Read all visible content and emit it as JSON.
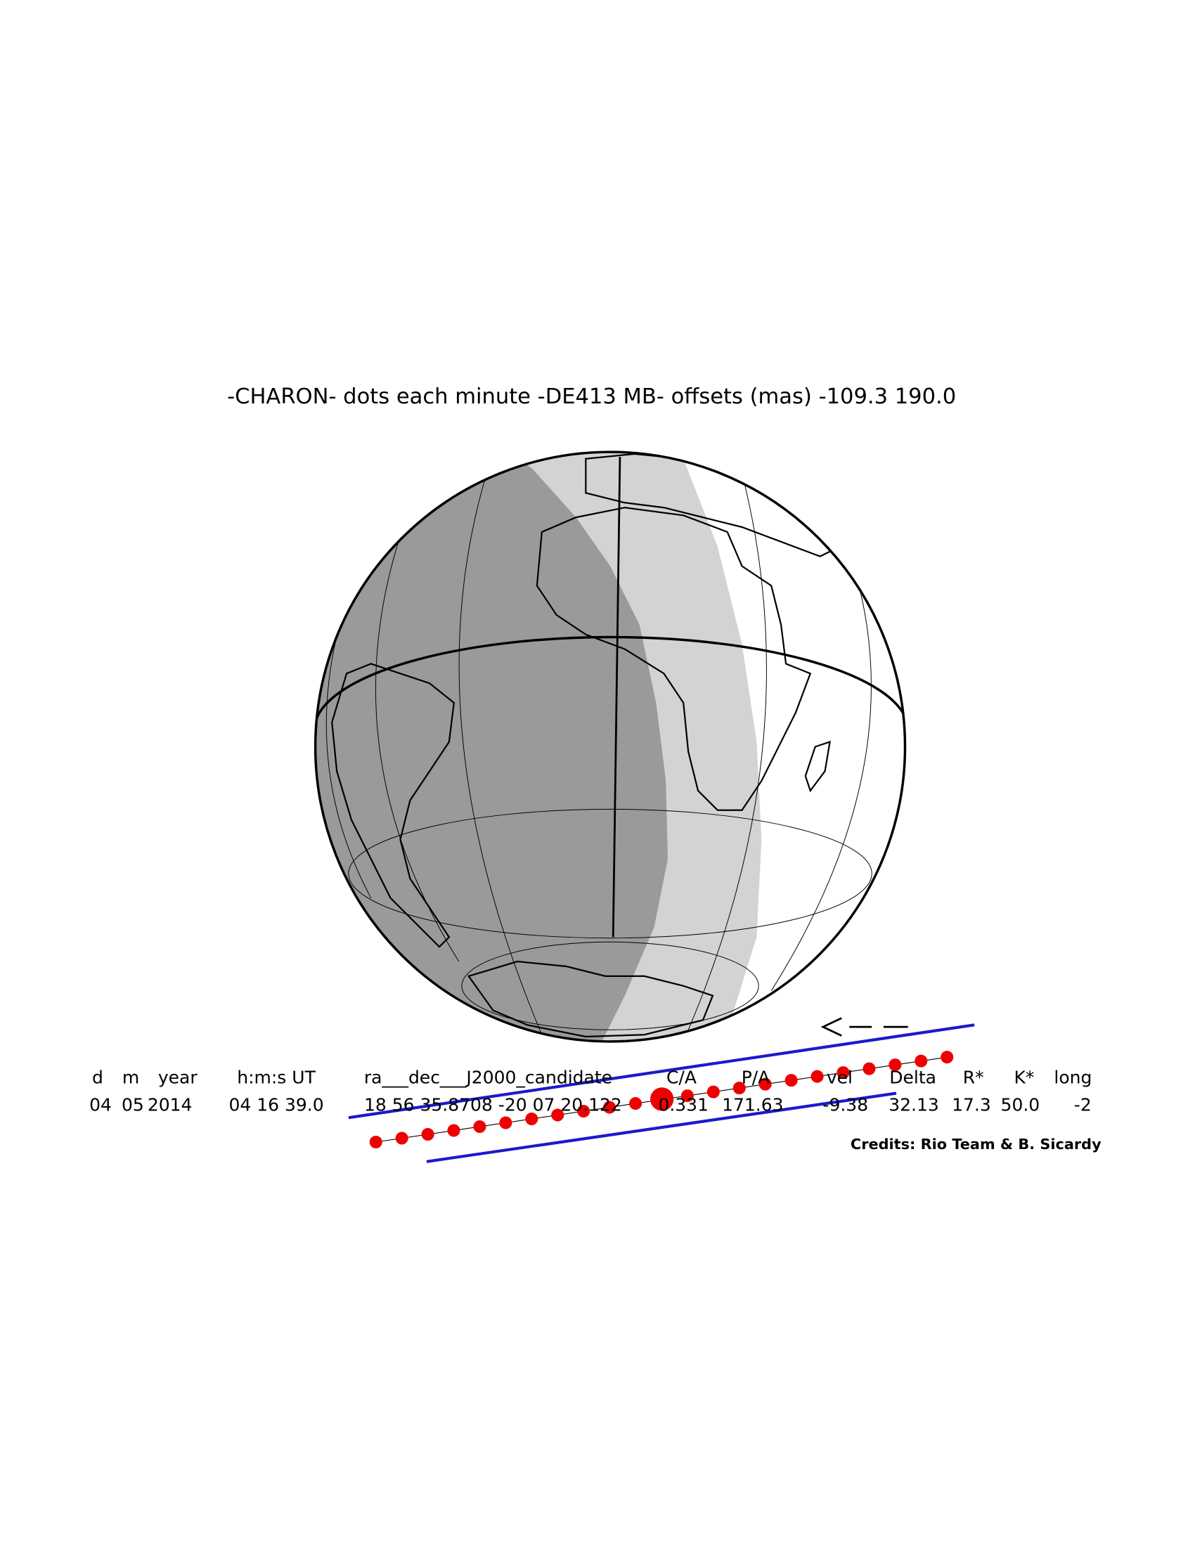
{
  "title": "-CHARON- dots each minute -DE413 MB- offsets (mas) -109.3   190.0",
  "table": {
    "header": [
      "d",
      "m",
      "year",
      "h:m:s UT",
      "ra___dec___J2000_candidate",
      "C/A",
      "P/A",
      "vel",
      "Delta",
      "R*",
      "K*",
      "long"
    ],
    "rows": [
      [
        "04",
        "05",
        "2014",
        "04 16 39.0",
        "18 56 35.8708 -20 07 20.122",
        "0.331",
        "171.63",
        "-9.38",
        "32.13",
        "17.3",
        "50.0",
        "-2"
      ]
    ]
  },
  "credits": "Credits: Rio Team & B. Sicardy"
}
